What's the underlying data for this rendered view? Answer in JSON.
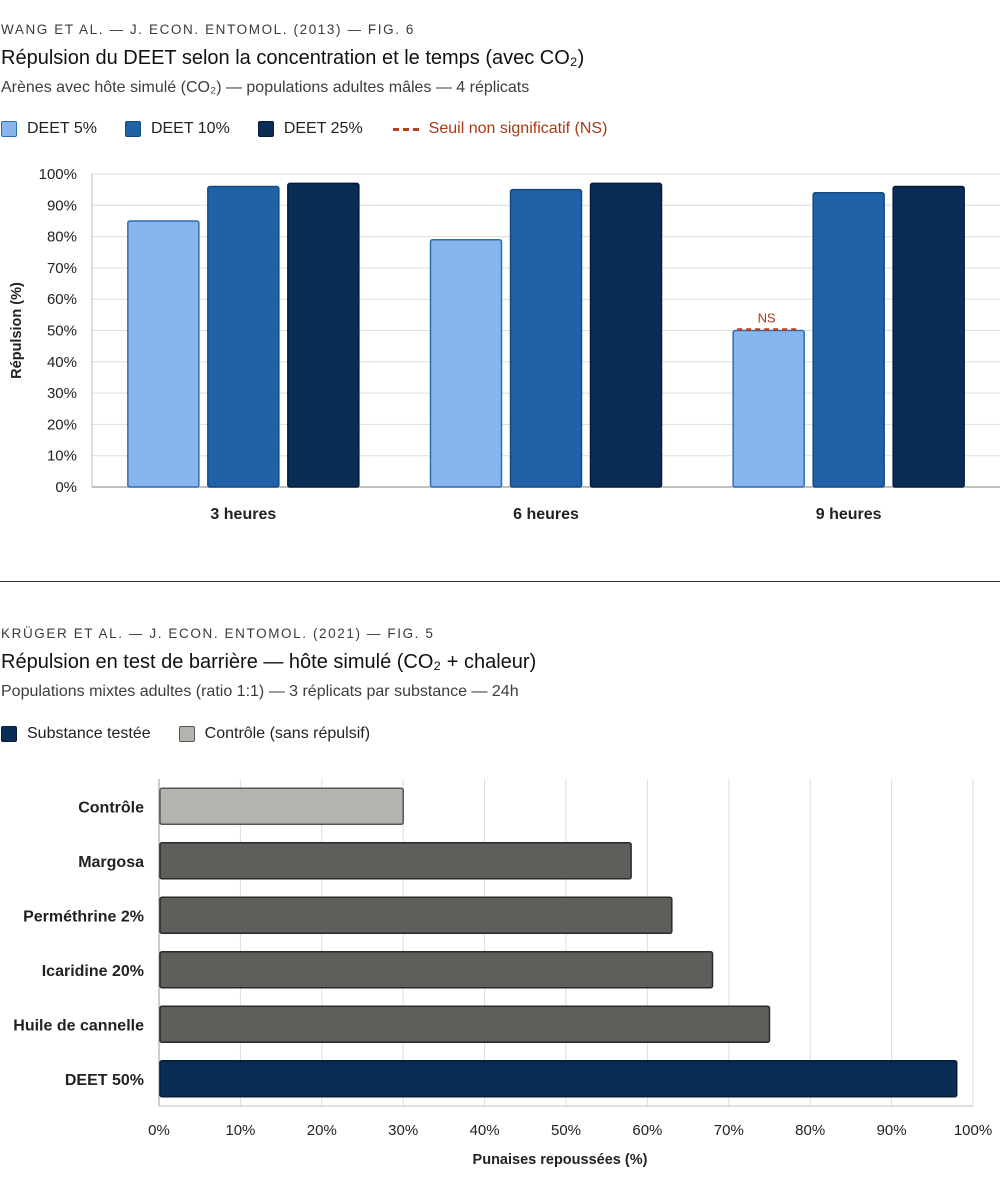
{
  "figure1": {
    "kicker": "WANG ET AL. — J. ECON. ENTOMOL. (2013) — FIG. 6",
    "title": "Répulsion du DEET selon la concentration et le temps (avec CO₂)",
    "subtitle": "Arènes avec hôte simulé (CO₂) — populations adultes mâles — 4 réplicats",
    "legend": [
      {
        "label": "DEET 5%",
        "color": "#86b6ec",
        "border": "#2f6db3"
      },
      {
        "label": "DEET 10%",
        "color": "#1f62a8",
        "border": "#174a82"
      },
      {
        "label": "DEET 25%",
        "color": "#0a2d57",
        "border": "#061d3a"
      }
    ],
    "legend_threshold": {
      "label": "Seuil non significatif (NS)",
      "color": "#b5401e"
    },
    "chart_data": {
      "type": "bar",
      "categories": [
        "3 heures",
        "6 heures",
        "9 heures"
      ],
      "series": [
        {
          "name": "DEET 5%",
          "values": [
            85,
            79,
            50
          ]
        },
        {
          "name": "DEET 10%",
          "values": [
            96,
            95,
            94
          ]
        },
        {
          "name": "DEET 25%",
          "values": [
            97,
            97,
            96
          ]
        }
      ],
      "ylabel": "Répulsion (%)",
      "ylim": [
        0,
        100
      ],
      "yticks": [
        "0%",
        "10%",
        "20%",
        "30%",
        "40%",
        "50%",
        "60%",
        "70%",
        "80%",
        "90%",
        "100%"
      ],
      "grid": true,
      "annotation": {
        "text": "NS",
        "category": "9 heures",
        "series": "DEET 5%",
        "value": 50
      }
    }
  },
  "figure2": {
    "kicker": "KRÜGER ET AL. — J. ECON. ENTOMOL. (2021) — FIG. 5",
    "title": "Répulsion en test de barrière — hôte simulé (CO₂ + chaleur)",
    "subtitle": "Populations mixtes adultes (ratio 1:1) — 3 réplicats par substance — 24h",
    "legend": [
      {
        "label": "Substance testée",
        "color": "#0a2d57",
        "border": "#061d3a"
      },
      {
        "label": "Contrôle (sans répulsif)",
        "color": "#b5b3ad",
        "border": "#555555"
      }
    ],
    "chart_data": {
      "type": "bar",
      "orientation": "horizontal",
      "categories": [
        "Contrôle",
        "Margosa",
        "Perméthrine 2%",
        "Icaridine 20%",
        "Huile de cannelle",
        "DEET 50%"
      ],
      "values": [
        30,
        58,
        63,
        68,
        75,
        98
      ],
      "bar_colors": [
        "#b5b3ad",
        "#5f5e5b",
        "#5f5e5b",
        "#5f5e5b",
        "#5f5e5b",
        "#0a2d57"
      ],
      "xlabel": "Punaises repoussées (%)",
      "xlim": [
        0,
        100
      ],
      "xticks": [
        "0%",
        "10%",
        "20%",
        "30%",
        "40%",
        "50%",
        "60%",
        "70%",
        "80%",
        "90%",
        "100%"
      ],
      "grid": true
    }
  }
}
